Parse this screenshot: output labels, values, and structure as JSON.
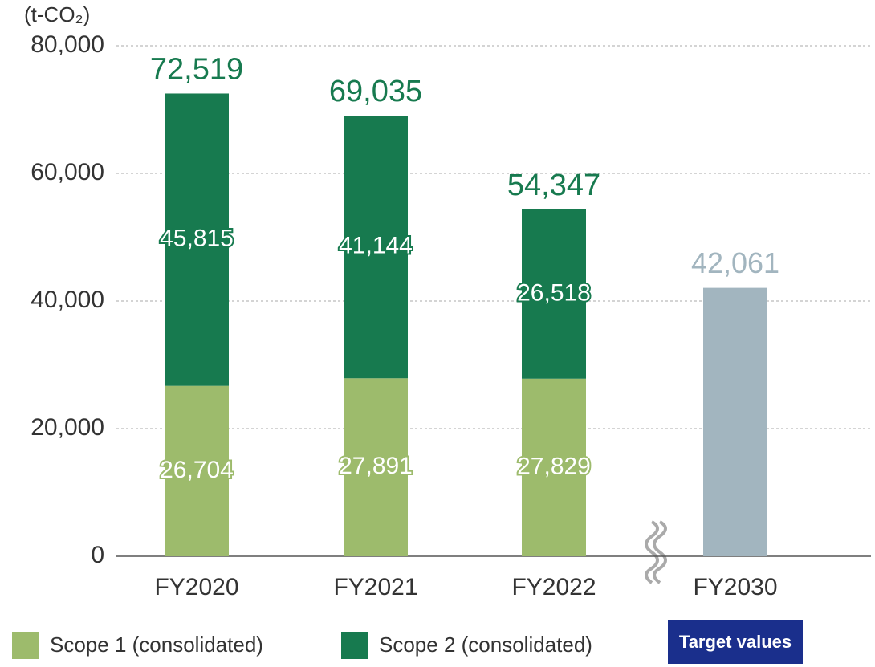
{
  "chart_data": {
    "type": "stacked_bar",
    "y_label": "(t-CO₂)",
    "categories": [
      "FY2020",
      "FY2021",
      "FY2022",
      "FY2030"
    ],
    "series": [
      {
        "name": "Scope 1 (consolidated)",
        "color": "#9dbb6c",
        "values": [
          26704,
          27891,
          27829,
          null
        ],
        "value_labels": [
          "26,704",
          "27,891",
          "27,829",
          null
        ]
      },
      {
        "name": "Scope 2 (consolidated)",
        "color": "#177a4f",
        "values": [
          45815,
          41144,
          26518,
          null
        ],
        "value_labels": [
          "45,815",
          "41,144",
          "26,518",
          null
        ]
      },
      {
        "name": "Target values",
        "color": "#a2b5bf",
        "legend_color": "#1a2f8c",
        "values": [
          null,
          null,
          null,
          42061
        ],
        "value_labels": [
          null,
          null,
          null,
          "42,061"
        ]
      }
    ],
    "totals": [
      72519,
      69035,
      54347,
      null
    ],
    "total_labels": [
      "72,519",
      "69,035",
      "54,347",
      null
    ],
    "total_color": "#177a4f",
    "ylim": [
      0,
      80000
    ],
    "yticks": [
      0,
      {
        "value": 20000,
        "label": "20,000"
      },
      {
        "value": 40000,
        "label": "40,000"
      },
      {
        "value": 60000,
        "label": "60,000"
      },
      {
        "value": 80000,
        "label": "80,000"
      }
    ],
    "grid": true
  }
}
